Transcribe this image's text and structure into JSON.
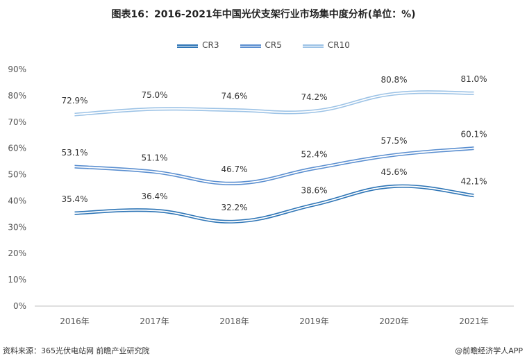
{
  "title": "图表16：2016-2021年中国光伏支架行业市场集中度分析(单位：%)",
  "legend_items": [
    "CR3",
    "CR5",
    "CR10"
  ],
  "footer": {
    "source": "资料来源：365光伏电站网 前瞻产业研究院",
    "brand": "@前瞻经济学人APP"
  },
  "colors": {
    "CR3": "#2e75b6",
    "CR5": "#5b8fd0",
    "CR10": "#9dc3e6",
    "axis": "#bfbfbf"
  },
  "chart_data": {
    "type": "line",
    "categories": [
      "2016年",
      "2017年",
      "2018年",
      "2019年",
      "2020年",
      "2021年"
    ],
    "series": [
      {
        "name": "CR3",
        "values": [
          35.4,
          36.4,
          32.2,
          38.6,
          45.6,
          42.1
        ],
        "labels": [
          "35.4%",
          "36.4%",
          "32.2%",
          "38.6%",
          "45.6%",
          "42.1%"
        ]
      },
      {
        "name": "CR5",
        "values": [
          53.1,
          51.1,
          46.7,
          52.4,
          57.5,
          60.1
        ],
        "labels": [
          "53.1%",
          "51.1%",
          "46.7%",
          "52.4%",
          "57.5%",
          "60.1%"
        ]
      },
      {
        "name": "CR10",
        "values": [
          72.9,
          75.0,
          74.6,
          74.2,
          80.8,
          81.0
        ],
        "labels": [
          "72.9%",
          "75.0%",
          "74.6%",
          "74.2%",
          "80.8%",
          "81.0%"
        ]
      }
    ],
    "y_ticks": [
      "0%",
      "10%",
      "20%",
      "30%",
      "40%",
      "50%",
      "60%",
      "70%",
      "80%",
      "90%"
    ],
    "ylim": [
      0,
      90
    ],
    "grid": false,
    "legend_position": "top"
  }
}
